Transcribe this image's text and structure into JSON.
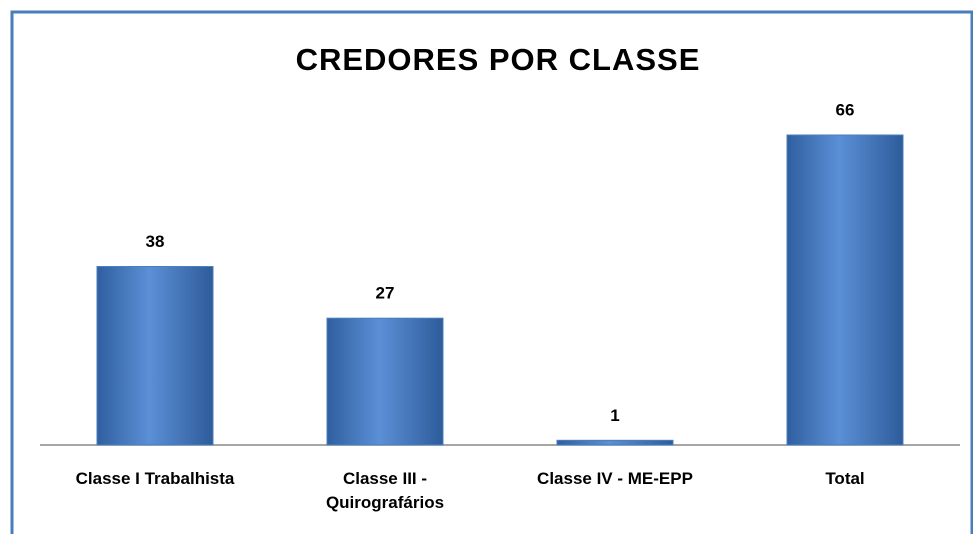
{
  "chart_data": {
    "type": "bar",
    "title": "CREDORES  POR CLASSE",
    "categories": [
      "Classe I Trabalhista",
      "Classe III - Quirografários",
      "Classe IV - ME-EPP",
      "Total"
    ],
    "values": [
      38,
      27,
      1,
      66
    ],
    "color": "#4a7ebb"
  }
}
